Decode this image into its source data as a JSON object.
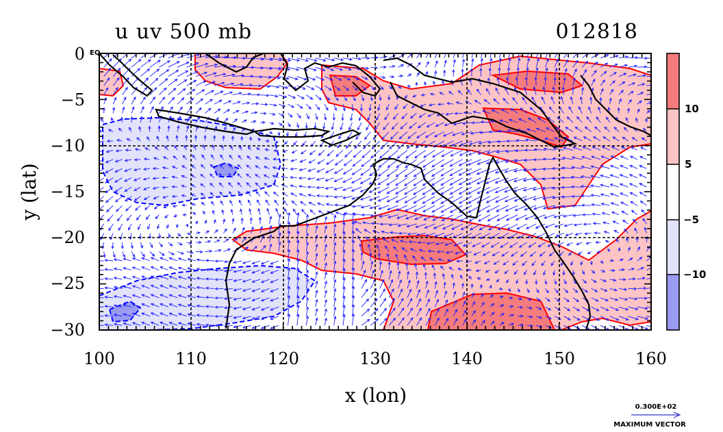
{
  "title": {
    "left": "u uv 500 mb",
    "right": "012818"
  },
  "map": {
    "eq_label": "EQ",
    "x_axis_label": "x (lon)",
    "y_axis_label": "y (lat)",
    "x_ticks": [
      "100",
      "110",
      "120",
      "130",
      "140",
      "150",
      "160"
    ],
    "y_ticks": [
      "0",
      "−5",
      "−10",
      "−15",
      "−20",
      "−25",
      "−30"
    ],
    "lon_range": [
      100,
      160
    ],
    "lat_range": [
      -30,
      0
    ],
    "grid": true,
    "vector_color": "#1a1aff",
    "contour_color": "#ff0000",
    "negative_contour_color": "#0000ff",
    "coast_color": "#000000"
  },
  "colorbar": {
    "labels": [
      "10",
      "5",
      "−5",
      "−10"
    ],
    "colors": [
      "#f47c7c",
      "#fcc4c4",
      "#ffffff",
      "#e2e2fa",
      "#9a9af0"
    ]
  },
  "legend": {
    "magnitude": "0.300E+02",
    "label": "MAXIMUM VECTOR"
  }
}
